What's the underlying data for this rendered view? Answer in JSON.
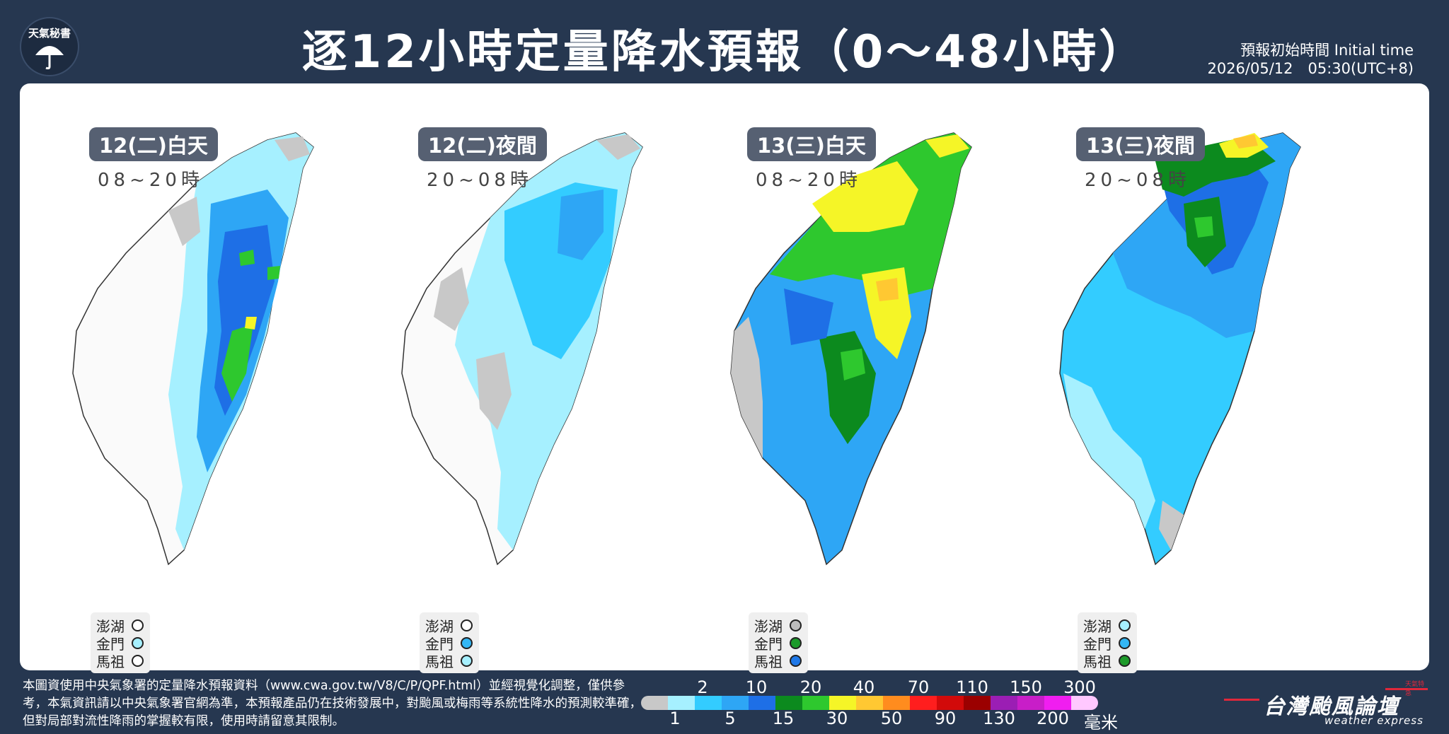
{
  "logo": {
    "text": "天氣秘書",
    "icon": "umbrella-icon"
  },
  "title": "逐12小時定量降水預報（0～48小時）",
  "initial_time": {
    "label": "預報初始時間 Initial time",
    "value": "2026/05/12　05:30(UTC+8)"
  },
  "panels": [
    {
      "label": "12(二)白天",
      "hours": "08~20時",
      "islands": [
        {
          "name": "澎湖",
          "color": "#ffffff"
        },
        {
          "name": "金門",
          "color": "#a6f0ff"
        },
        {
          "name": "馬祖",
          "color": "#ffffff"
        }
      ]
    },
    {
      "label": "12(二)夜間",
      "hours": "20~08時",
      "islands": [
        {
          "name": "澎湖",
          "color": "#ffffff"
        },
        {
          "name": "金門",
          "color": "#33b7f5"
        },
        {
          "name": "馬祖",
          "color": "#a6f0ff"
        }
      ]
    },
    {
      "label": "13(三)白天",
      "hours": "08~20時",
      "islands": [
        {
          "name": "澎湖",
          "color": "#bdbdbd"
        },
        {
          "name": "金門",
          "color": "#1c9a2a"
        },
        {
          "name": "馬祖",
          "color": "#1e78e8"
        }
      ]
    },
    {
      "label": "13(三)夜間",
      "hours": "20~08時",
      "islands": [
        {
          "name": "澎湖",
          "color": "#a6f0ff"
        },
        {
          "name": "金門",
          "color": "#33b7f5"
        },
        {
          "name": "馬祖",
          "color": "#1c9a2a"
        }
      ]
    }
  ],
  "legend": {
    "unit": "毫米",
    "top_ticks": [
      "2",
      "10",
      "20",
      "40",
      "70",
      "110",
      "150",
      "300"
    ],
    "bottom_ticks": [
      "1",
      "5",
      "15",
      "30",
      "50",
      "90",
      "130",
      "200"
    ],
    "colors": [
      "#c8c8c8",
      "#a6f0ff",
      "#33ccff",
      "#2ea6f5",
      "#1e6fe6",
      "#0c8a1e",
      "#2ec82e",
      "#f5f527",
      "#ffc832",
      "#ff8c1e",
      "#ff1e1e",
      "#d20a0a",
      "#9b0000",
      "#9b1eb4",
      "#c81ec8",
      "#f01ef0",
      "#ffc8ff"
    ]
  },
  "footer_note": "本圖資使用中央氣象署的定量降水預報資料（www.cwa.gov.tw/V8/C/P/QPF.html）並經視覺化調整，僅供參考，本氣資訊請以中央氣象署官網為準，本預報產品仍在技術發展中，對颱風或梅雨等系統性降水的預測較準確，但對局部對流性降雨的掌握較有限，使用時請留意其限制。",
  "brand": {
    "name": "台灣颱風論壇",
    "sub": "weather express",
    "tag": "天氣特急"
  }
}
